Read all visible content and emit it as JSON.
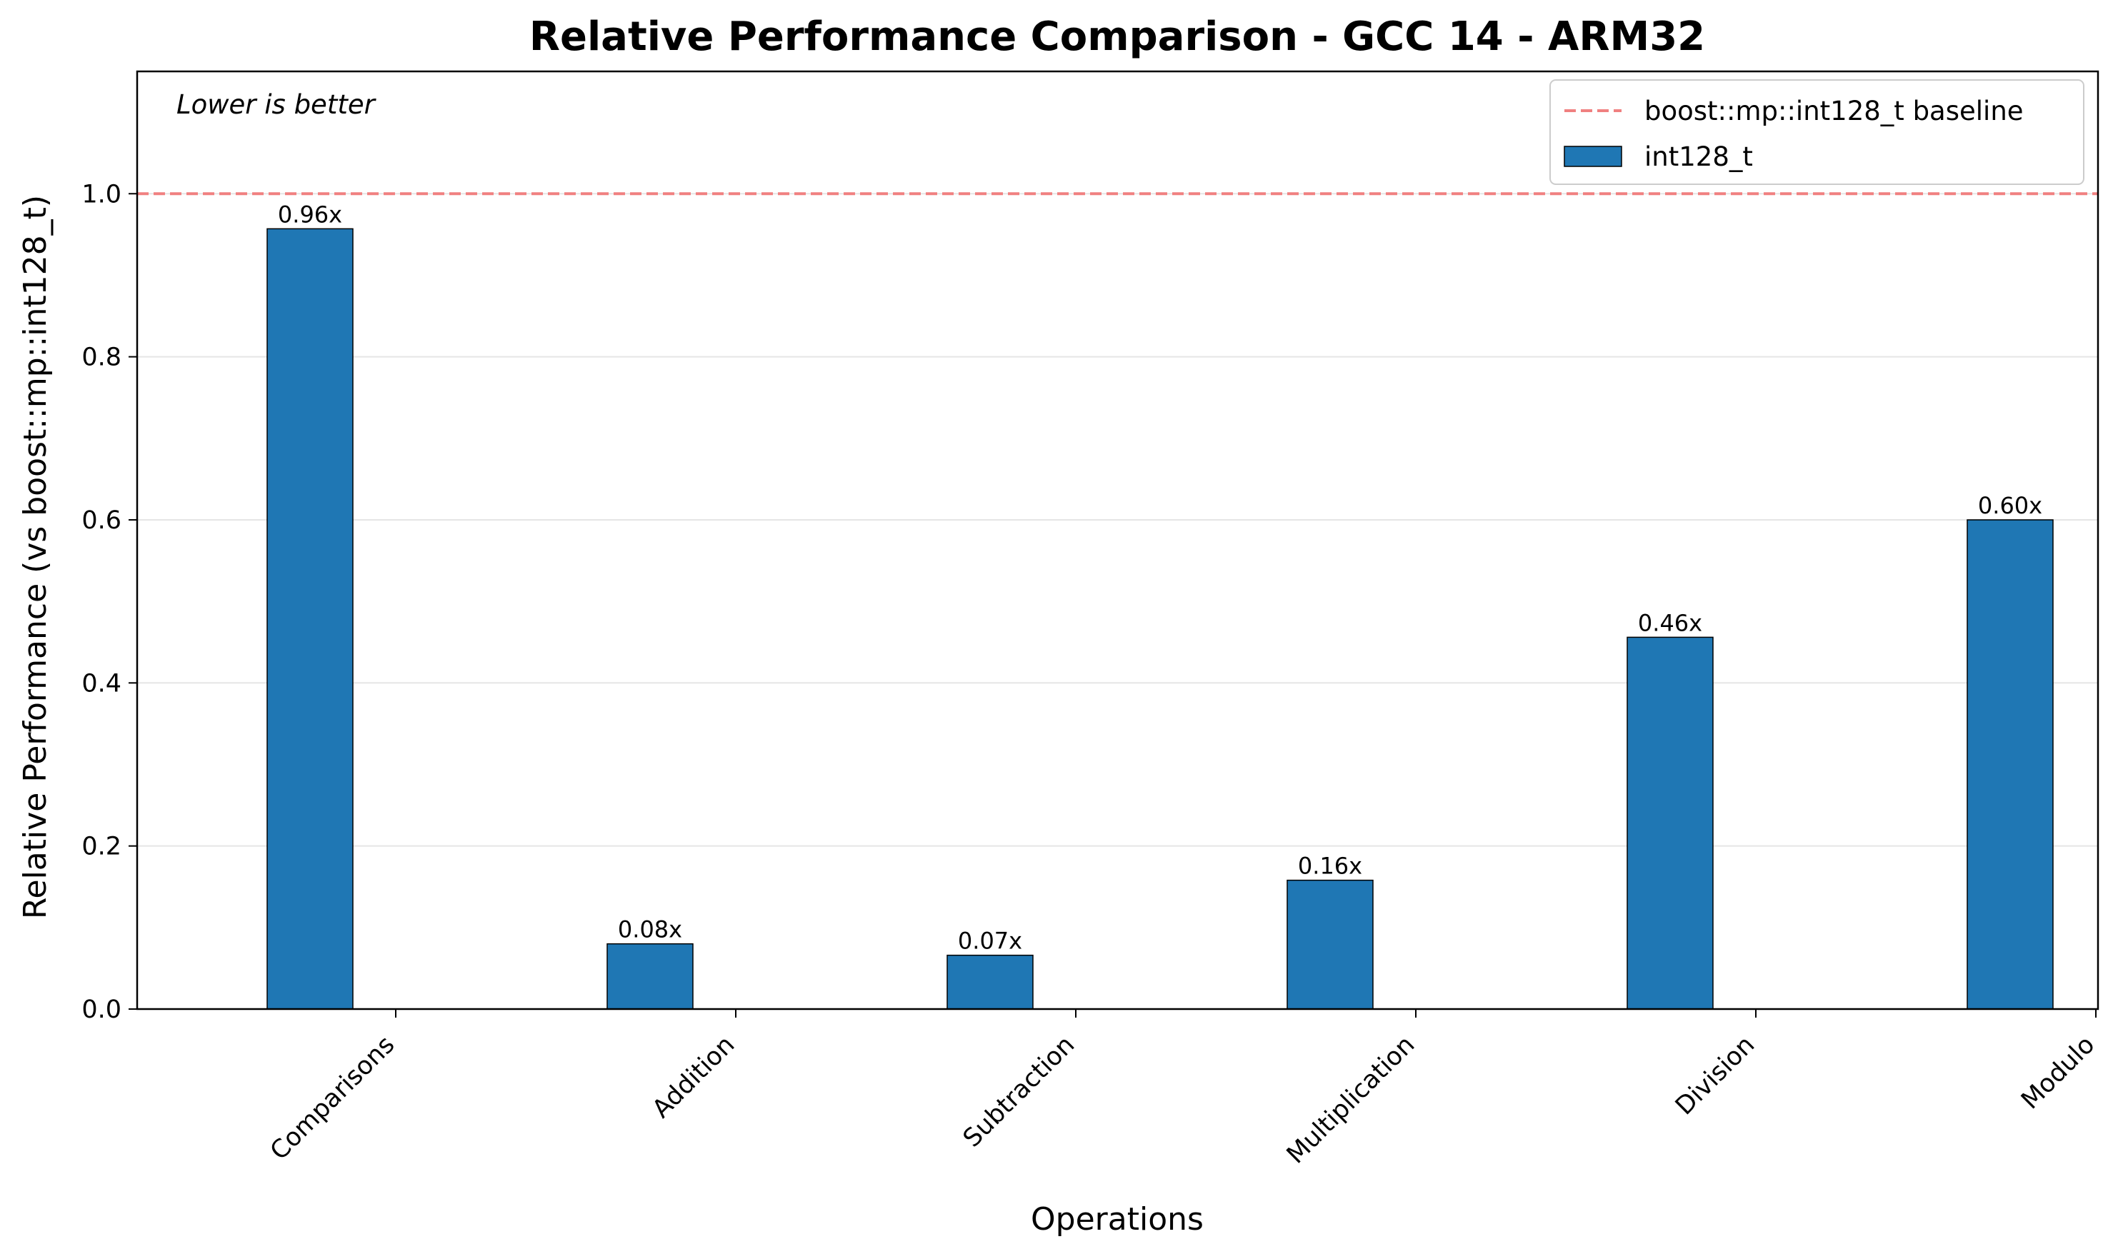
{
  "chart_data": {
    "type": "bar",
    "title": "Relative Performance Comparison - GCC 14 - ARM32",
    "xlabel": "Operations",
    "ylabel": "Relative Performance (vs boost::mp::int128_t)",
    "categories": [
      "Comparisons",
      "Addition",
      "Subtraction",
      "Multiplication",
      "Division",
      "Modulo"
    ],
    "series": [
      {
        "name": "int128_t",
        "values": [
          0.957,
          0.08,
          0.066,
          0.158,
          0.456,
          0.6
        ],
        "labels": [
          "0.96x",
          "0.08x",
          "0.07x",
          "0.16x",
          "0.46x",
          "0.60x"
        ],
        "color": "#1f77b4"
      }
    ],
    "baseline": {
      "name": "boost::mp::int128_t baseline",
      "value": 1.0,
      "color": "#f08080",
      "style": "dashed"
    },
    "annotation": "Lower is better",
    "ylim": [
      0,
      1.15
    ],
    "yticks": [
      0.0,
      0.2,
      0.4,
      0.6,
      0.8,
      1.0
    ],
    "ytick_labels": [
      "0.0",
      "0.2",
      "0.4",
      "0.6",
      "0.8",
      "1.0"
    ],
    "grid": "y",
    "legend_position": "top-right"
  }
}
